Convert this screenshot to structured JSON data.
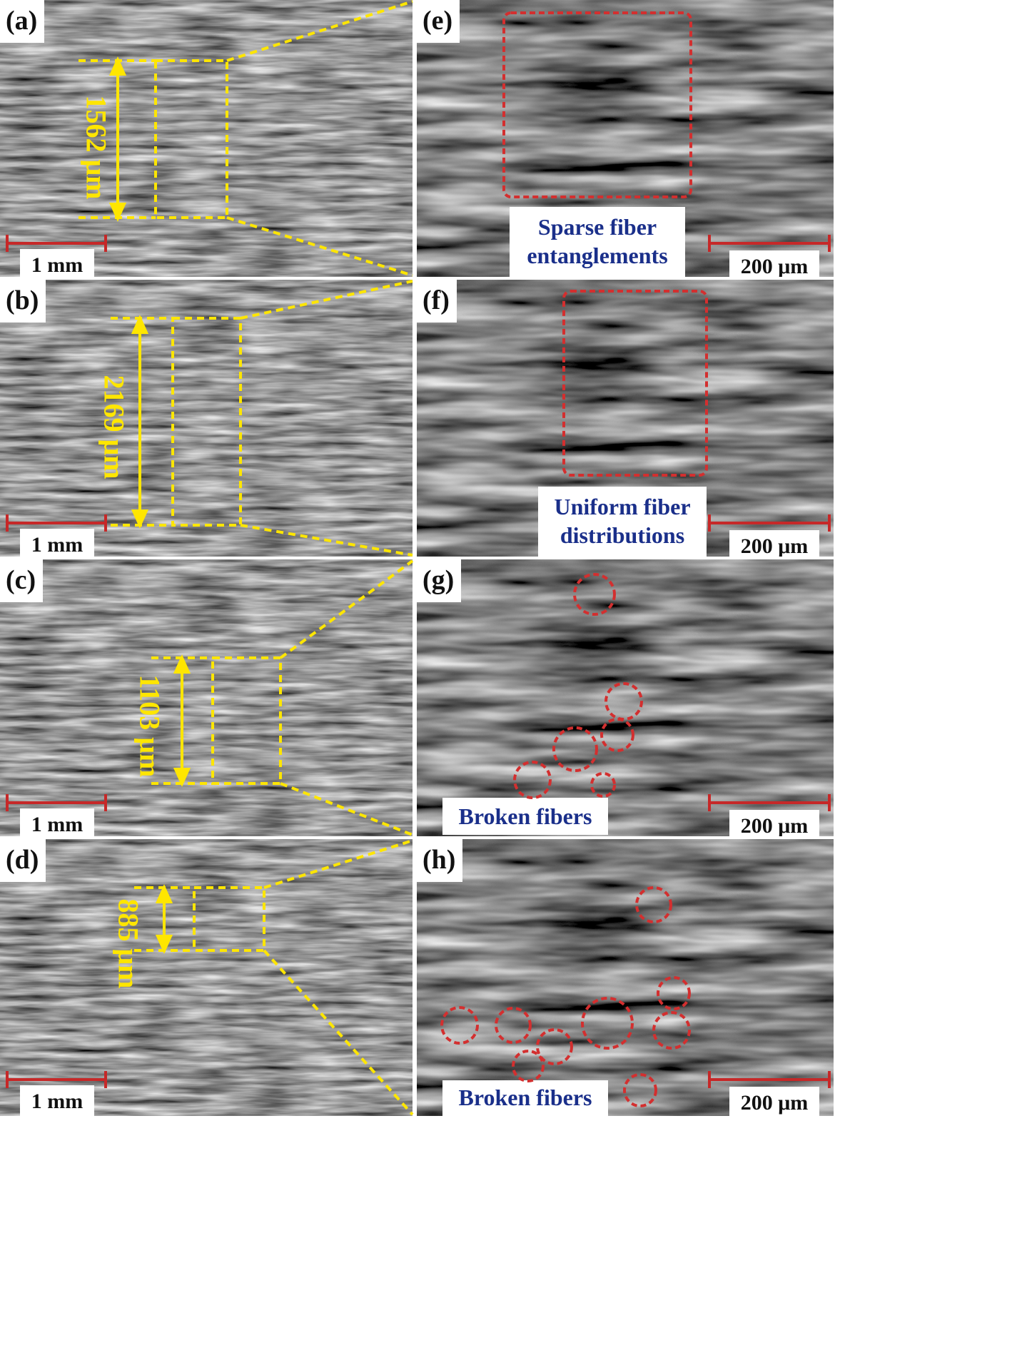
{
  "panels": {
    "a": {
      "label": "(a)",
      "scale": "1 mm",
      "measure": "1562 μm"
    },
    "b": {
      "label": "(b)",
      "scale": "1 mm",
      "measure": "2169 μm"
    },
    "c": {
      "label": "(c)",
      "scale": "1 mm",
      "measure": "1103 μm"
    },
    "d": {
      "label": "(d)",
      "scale": "1 mm",
      "measure": "885 μm"
    },
    "e": {
      "label": "(e)",
      "scale": "200 μm",
      "caption_line1": "Sparse fiber",
      "caption_line2": "entanglements"
    },
    "f": {
      "label": "(f)",
      "scale": "200 μm",
      "caption_line1": "Uniform fiber",
      "caption_line2": "distributions"
    },
    "g": {
      "label": "(g)",
      "scale": "200 μm",
      "caption_line1": "Broken fibers"
    },
    "h": {
      "label": "(h)",
      "scale": "200 μm",
      "caption_line1": "Broken fibers"
    }
  },
  "colors": {
    "measure": "#ffe600",
    "scale_bar": "#c62828",
    "caption_text": "#1a2f8a",
    "highlight": "#d32f2f"
  }
}
